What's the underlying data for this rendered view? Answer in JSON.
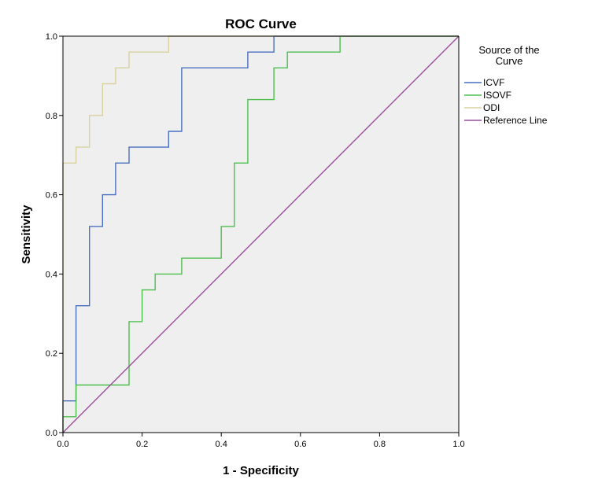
{
  "chart_data": {
    "type": "line",
    "title": "ROC Curve",
    "xlabel": "1 - Specificity",
    "ylabel": "Sensitivity",
    "xlim": [
      0,
      1
    ],
    "ylim": [
      0,
      1
    ],
    "x_ticks": [
      "0.0",
      "0.2",
      "0.4",
      "0.6",
      "0.8",
      "1.0"
    ],
    "y_ticks": [
      "0.0",
      "0.2",
      "0.4",
      "0.6",
      "0.8",
      "1.0"
    ],
    "grid": false,
    "legend_title": [
      "Source of the",
      "Curve"
    ],
    "legend_position": "right",
    "series": [
      {
        "name": "ICVF",
        "color": "#4a6fc0",
        "points": [
          [
            0,
            0
          ],
          [
            0,
            0.08
          ],
          [
            0.033,
            0.08
          ],
          [
            0.033,
            0.32
          ],
          [
            0.067,
            0.32
          ],
          [
            0.067,
            0.52
          ],
          [
            0.1,
            0.52
          ],
          [
            0.1,
            0.6
          ],
          [
            0.133,
            0.6
          ],
          [
            0.133,
            0.68
          ],
          [
            0.167,
            0.68
          ],
          [
            0.167,
            0.72
          ],
          [
            0.267,
            0.72
          ],
          [
            0.267,
            0.76
          ],
          [
            0.3,
            0.76
          ],
          [
            0.3,
            0.92
          ],
          [
            0.467,
            0.92
          ],
          [
            0.467,
            0.96
          ],
          [
            0.533,
            0.96
          ],
          [
            0.533,
            1.0
          ],
          [
            1.0,
            1.0
          ]
        ]
      },
      {
        "name": "ISOVF",
        "color": "#4dbf4d",
        "points": [
          [
            0,
            0
          ],
          [
            0,
            0.04
          ],
          [
            0.033,
            0.04
          ],
          [
            0.033,
            0.12
          ],
          [
            0.167,
            0.12
          ],
          [
            0.167,
            0.28
          ],
          [
            0.2,
            0.28
          ],
          [
            0.2,
            0.36
          ],
          [
            0.233,
            0.36
          ],
          [
            0.233,
            0.4
          ],
          [
            0.3,
            0.4
          ],
          [
            0.3,
            0.44
          ],
          [
            0.4,
            0.44
          ],
          [
            0.4,
            0.52
          ],
          [
            0.433,
            0.52
          ],
          [
            0.433,
            0.68
          ],
          [
            0.467,
            0.68
          ],
          [
            0.467,
            0.84
          ],
          [
            0.533,
            0.84
          ],
          [
            0.533,
            0.92
          ],
          [
            0.567,
            0.92
          ],
          [
            0.567,
            0.96
          ],
          [
            0.7,
            0.96
          ],
          [
            0.7,
            1.0
          ],
          [
            1.0,
            1.0
          ]
        ]
      },
      {
        "name": "ODI",
        "color": "#d8d2a0",
        "points": [
          [
            0,
            0
          ],
          [
            0,
            0.68
          ],
          [
            0.033,
            0.68
          ],
          [
            0.033,
            0.72
          ],
          [
            0.067,
            0.72
          ],
          [
            0.067,
            0.8
          ],
          [
            0.1,
            0.8
          ],
          [
            0.1,
            0.88
          ],
          [
            0.133,
            0.88
          ],
          [
            0.133,
            0.92
          ],
          [
            0.167,
            0.92
          ],
          [
            0.167,
            0.96
          ],
          [
            0.267,
            0.96
          ],
          [
            0.267,
            1.0
          ],
          [
            1.0,
            1.0
          ]
        ]
      },
      {
        "name": "Reference Line",
        "color": "#9b4f9b",
        "points": [
          [
            0,
            0
          ],
          [
            1,
            1
          ]
        ]
      }
    ]
  },
  "style": {
    "plot_background": "#efefef",
    "axis_color": "#000000"
  }
}
